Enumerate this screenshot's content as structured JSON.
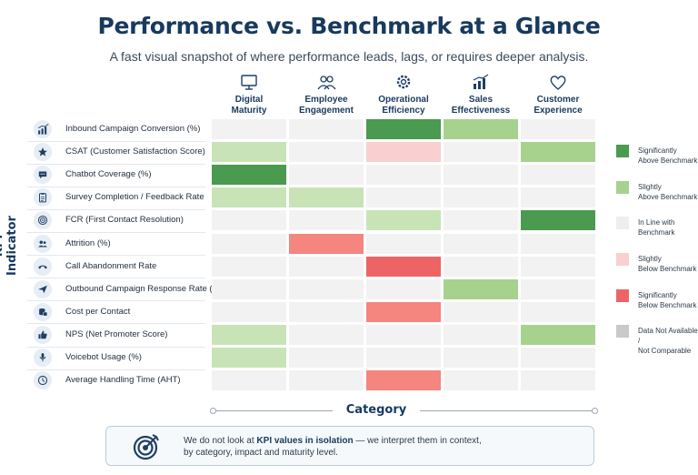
{
  "header": {
    "title": "Performance vs. Benchmark at a Glance",
    "subtitle": "A fast visual snapshot of where performance leads, lags, or requires deeper analysis."
  },
  "y_axis_label": "KPI Indicator",
  "category_axis_label": "Category",
  "colors": {
    "significantly_above": "#4a9a4f",
    "slightly_above": "#a6d28e",
    "in_line": "#eeeeee",
    "slightly_below": "#f9cfcf",
    "significantly_below": "#ee6464",
    "not_available": "#c9c9c9",
    "in_line_light": "#f2f2f2",
    "slightly_above_light": "#c8e4b6",
    "significantly_below_light": "#f4857f"
  },
  "chart_data": {
    "type": "heatmap",
    "columns": [
      {
        "label_line1": "Digital",
        "label_line2": "Maturity",
        "icon": "monitor-icon"
      },
      {
        "label_line1": "Employee",
        "label_line2": "Engagement",
        "icon": "people-icon"
      },
      {
        "label_line1": "Operational",
        "label_line2": "Efficiency",
        "icon": "gear-icon"
      },
      {
        "label_line1": "Sales",
        "label_line2": "Effectiveness",
        "icon": "bar-chart-icon"
      },
      {
        "label_line1": "Customer",
        "label_line2": "Experience",
        "icon": "heart-icon"
      }
    ],
    "rows": [
      {
        "label": "Inbound Campaign Conversion (%)",
        "icon": "bar-chart-icon",
        "values": [
          "in_line",
          "in_line",
          "significantly_above",
          "slightly_above",
          "in_line"
        ]
      },
      {
        "label": "CSAT (Customer Satisfaction Score)",
        "icon": "star-icon",
        "values": [
          "slightly_above_light",
          "in_line",
          "slightly_below",
          "in_line",
          "slightly_above"
        ]
      },
      {
        "label": "Chatbot Coverage (%)",
        "icon": "chat-icon",
        "values": [
          "significantly_above",
          "in_line",
          "in_line",
          "in_line",
          "in_line"
        ]
      },
      {
        "label": "Survey Completion / Feedback Rate",
        "icon": "clipboard-icon",
        "values": [
          "slightly_above_light",
          "slightly_above_light",
          "in_line",
          "in_line",
          "in_line"
        ]
      },
      {
        "label": "FCR (First Contact Resolution)",
        "icon": "target-icon",
        "values": [
          "in_line",
          "in_line",
          "slightly_above_light",
          "in_line",
          "significantly_above"
        ]
      },
      {
        "label": "Attrition (%)",
        "icon": "users-icon",
        "values": [
          "in_line",
          "significantly_below_light",
          "in_line",
          "in_line",
          "in_line"
        ]
      },
      {
        "label": "Call Abandonment Rate",
        "icon": "phone-icon",
        "values": [
          "in_line",
          "in_line",
          "significantly_below",
          "in_line",
          "in_line"
        ]
      },
      {
        "label": "Outbound Campaign Response Rate (%)",
        "icon": "send-icon",
        "values": [
          "in_line",
          "in_line",
          "in_line",
          "slightly_above",
          "in_line"
        ]
      },
      {
        "label": "Cost per Contact",
        "icon": "coins-icon",
        "values": [
          "in_line",
          "in_line",
          "significantly_below_light",
          "in_line",
          "in_line"
        ]
      },
      {
        "label": "NPS (Net Promoter Score)",
        "icon": "thumbs-up-icon",
        "values": [
          "slightly_above_light",
          "in_line",
          "in_line",
          "in_line",
          "slightly_above"
        ]
      },
      {
        "label": "Voicebot Usage (%)",
        "icon": "microphone-icon",
        "values": [
          "slightly_above_light",
          "in_line",
          "in_line",
          "in_line",
          "in_line"
        ]
      },
      {
        "label": "Average Handling Time (AHT)",
        "icon": "clock-icon",
        "values": [
          "in_line",
          "in_line",
          "significantly_below_light",
          "in_line",
          "in_line"
        ]
      }
    ],
    "legend": [
      {
        "key": "significantly_above",
        "line1": "Significantly",
        "line2": "Above Benchmark"
      },
      {
        "key": "slightly_above",
        "line1": "Slightly",
        "line2": "Above Benchmark"
      },
      {
        "key": "in_line",
        "line1": "In Line with",
        "line2": "Benchmark"
      },
      {
        "key": "slightly_below",
        "line1": "Slightly",
        "line2": "Below Benchmark"
      },
      {
        "key": "significantly_below",
        "line1": "Significantly",
        "line2": "Below Benchmark"
      },
      {
        "key": "not_available",
        "line1": "Data Not Available /",
        "line2": "Not Comparable"
      }
    ],
    "legend_placement": "right"
  },
  "note": {
    "icon": "target-arrow-icon",
    "part1": "We do not look at ",
    "bold1": "KPI values in isolation",
    "part2": " — we interpret them in context,",
    "line2": "by category, impact and maturity level."
  }
}
